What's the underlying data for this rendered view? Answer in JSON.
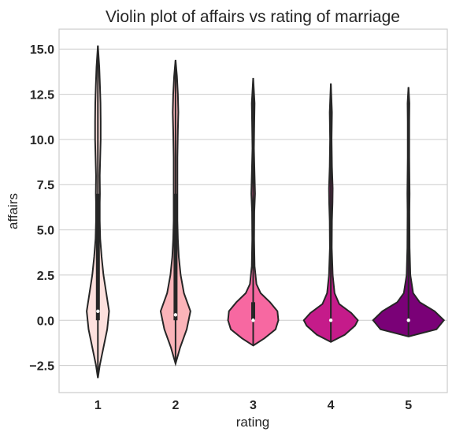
{
  "chart_data": {
    "type": "violin",
    "title": "Violin plot of affairs vs rating of marriage",
    "xlabel": "rating",
    "ylabel": "affairs",
    "categories": [
      "1",
      "2",
      "3",
      "4",
      "5"
    ],
    "ylim": [
      -4.0,
      16.1
    ],
    "yticks": [
      -2.5,
      0.0,
      2.5,
      5.0,
      7.5,
      10.0,
      12.5,
      15.0
    ],
    "ytick_labels": [
      "−2.5",
      "0.0",
      "2.5",
      "5.0",
      "7.5",
      "10.0",
      "12.5",
      "15.0"
    ],
    "grid": true,
    "violins": [
      {
        "category": "1",
        "color": "#fde0dd",
        "ymin": -3.2,
        "ymax": 15.2,
        "box": [
          0.0,
          7.0
        ],
        "median": 0.5,
        "profile": [
          [
            -3.2,
            0
          ],
          [
            -2.5,
            0.02
          ],
          [
            -1.5,
            0.06
          ],
          [
            -0.5,
            0.1
          ],
          [
            0.5,
            0.12
          ],
          [
            1.5,
            0.09
          ],
          [
            2.5,
            0.06
          ],
          [
            3.5,
            0.04
          ],
          [
            4.5,
            0.025
          ],
          [
            5.5,
            0.02
          ],
          [
            6.5,
            0.02
          ],
          [
            7,
            0.022
          ],
          [
            8,
            0.02
          ],
          [
            9,
            0.025
          ],
          [
            10,
            0.03
          ],
          [
            11,
            0.03
          ],
          [
            12,
            0.028
          ],
          [
            13,
            0.022
          ],
          [
            14,
            0.015
          ],
          [
            15.2,
            0
          ]
        ]
      },
      {
        "category": "2",
        "color": "#fbb4b9",
        "ymin": -2.4,
        "ymax": 14.4,
        "box": [
          0.0,
          7.0
        ],
        "median": 0.3,
        "profile": [
          [
            -2.4,
            0
          ],
          [
            -1.5,
            0.05
          ],
          [
            -0.5,
            0.12
          ],
          [
            0.5,
            0.16
          ],
          [
            1.5,
            0.09
          ],
          [
            2.5,
            0.055
          ],
          [
            3.5,
            0.035
          ],
          [
            4.5,
            0.025
          ],
          [
            5.5,
            0.02
          ],
          [
            6.5,
            0.02
          ],
          [
            7.5,
            0.02
          ],
          [
            9,
            0.02
          ],
          [
            10.5,
            0.025
          ],
          [
            11.5,
            0.03
          ],
          [
            12.5,
            0.025
          ],
          [
            13.5,
            0.015
          ],
          [
            14.4,
            0
          ]
        ]
      },
      {
        "category": "3",
        "color": "#f768a1",
        "ymin": -1.4,
        "ymax": 13.4,
        "box": [
          0.0,
          1.0
        ],
        "median": 0.0,
        "profile": [
          [
            -1.4,
            0
          ],
          [
            -1.0,
            0.12
          ],
          [
            -0.5,
            0.24
          ],
          [
            0.0,
            0.27
          ],
          [
            0.5,
            0.26
          ],
          [
            1.0,
            0.18
          ],
          [
            1.5,
            0.08
          ],
          [
            2.0,
            0.035
          ],
          [
            3.0,
            0.015
          ],
          [
            4.5,
            0.01
          ],
          [
            6.0,
            0.012
          ],
          [
            7.0,
            0.02
          ],
          [
            8.0,
            0.015
          ],
          [
            9.5,
            0.008
          ],
          [
            11,
            0.012
          ],
          [
            12,
            0.015
          ],
          [
            13.4,
            0
          ]
        ]
      },
      {
        "category": "4",
        "color": "#c51b8a",
        "ymin": -1.2,
        "ymax": 13.1,
        "box": [
          0.0,
          0.0
        ],
        "median": 0.0,
        "profile": [
          [
            -1.2,
            0
          ],
          [
            -0.8,
            0.15
          ],
          [
            -0.3,
            0.26
          ],
          [
            0.0,
            0.29
          ],
          [
            0.4,
            0.22
          ],
          [
            0.9,
            0.09
          ],
          [
            1.5,
            0.04
          ],
          [
            2.5,
            0.02
          ],
          [
            4,
            0.01
          ],
          [
            5.5,
            0.012
          ],
          [
            6.5,
            0.018
          ],
          [
            7.3,
            0.02
          ],
          [
            8.5,
            0.012
          ],
          [
            10,
            0.008
          ],
          [
            11.5,
            0.012
          ],
          [
            13.1,
            0
          ]
        ]
      },
      {
        "category": "5",
        "color": "#7a0177",
        "ymin": -0.9,
        "ymax": 12.9,
        "box": [
          0.0,
          0.0
        ],
        "median": 0.0,
        "profile": [
          [
            -0.9,
            0
          ],
          [
            -0.5,
            0.3
          ],
          [
            0.0,
            0.38
          ],
          [
            0.5,
            0.28
          ],
          [
            1.0,
            0.12
          ],
          [
            1.5,
            0.05
          ],
          [
            2.5,
            0.02
          ],
          [
            4,
            0.012
          ],
          [
            6,
            0.01
          ],
          [
            7,
            0.012
          ],
          [
            9,
            0.008
          ],
          [
            11,
            0.008
          ],
          [
            12,
            0.01
          ],
          [
            12.9,
            0
          ]
        ]
      }
    ]
  }
}
